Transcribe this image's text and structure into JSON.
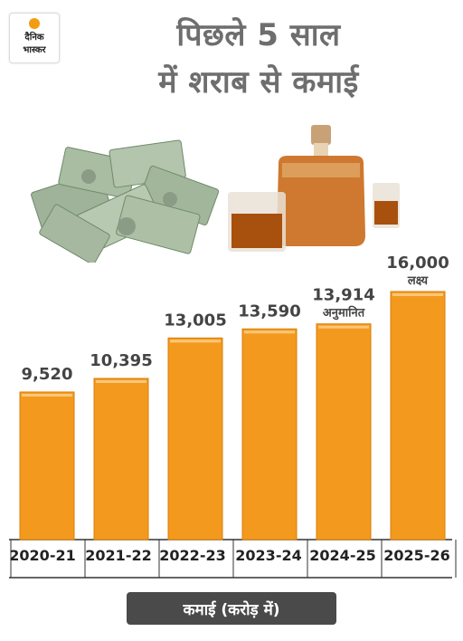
{
  "brand": {
    "line1": "दैनिक",
    "line2": "भास्कर"
  },
  "title": {
    "line1": "पिछले 5 साल",
    "line2": "में शराब से कमाई"
  },
  "chart_data": {
    "type": "bar",
    "categories": [
      "2020-21",
      "2021-22",
      "2022-23",
      "2023-24",
      "2024-25",
      "2025-26"
    ],
    "values": [
      9520,
      10395,
      13005,
      13590,
      13914,
      16000
    ],
    "value_labels": [
      "9,520",
      "10,395",
      "13,005",
      "13,590",
      "13,914",
      "16,000"
    ],
    "annotations": [
      "",
      "",
      "",
      "",
      "अनुमानित",
      "लक्ष्य"
    ],
    "ylim": [
      0,
      16000
    ],
    "grid": false,
    "bar_color": "#f39a1e",
    "bar_edge_color": "#d97f0a"
  },
  "unit_label": "कमाई (करोड़ में)",
  "colors": {
    "title": "#6e6e6e",
    "pill": "#4a4a4a",
    "axis": "#333333"
  }
}
